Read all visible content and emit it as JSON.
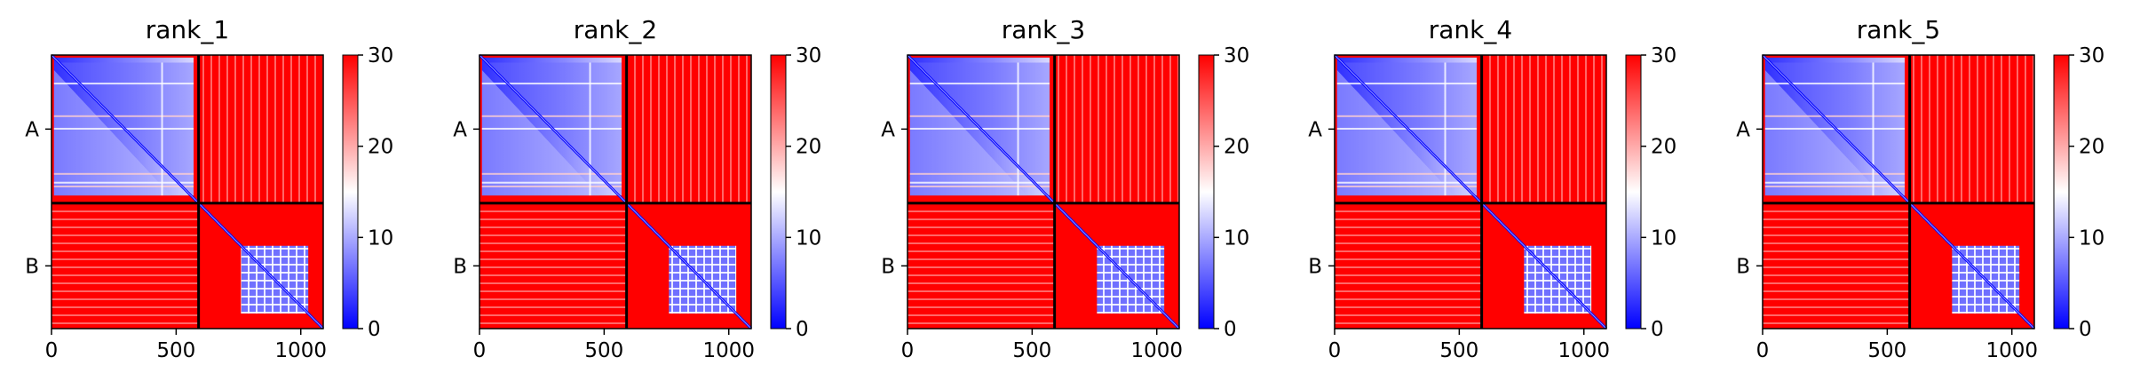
{
  "chart_data": [
    {
      "type": "heatmap",
      "title": "rank_1",
      "x_ticks": [
        "0",
        "500",
        "1000"
      ],
      "y_ticks": [
        "A",
        "B"
      ],
      "colorbar": {
        "ticks": [
          "0",
          "10",
          "20",
          "30"
        ],
        "range": [
          0,
          30
        ],
        "colormap": "bwr"
      },
      "x_range": [
        0,
        1090
      ],
      "chain_boundary": 590
    },
    {
      "type": "heatmap",
      "title": "rank_2",
      "x_ticks": [
        "0",
        "500",
        "1000"
      ],
      "y_ticks": [
        "A",
        "B"
      ],
      "colorbar": {
        "ticks": [
          "0",
          "10",
          "20",
          "30"
        ],
        "range": [
          0,
          30
        ],
        "colormap": "bwr"
      },
      "x_range": [
        0,
        1090
      ],
      "chain_boundary": 590
    },
    {
      "type": "heatmap",
      "title": "rank_3",
      "x_ticks": [
        "0",
        "500",
        "1000"
      ],
      "y_ticks": [
        "A",
        "B"
      ],
      "colorbar": {
        "ticks": [
          "0",
          "10",
          "20",
          "30"
        ],
        "range": [
          0,
          30
        ],
        "colormap": "bwr"
      },
      "x_range": [
        0,
        1090
      ],
      "chain_boundary": 590
    },
    {
      "type": "heatmap",
      "title": "rank_4",
      "x_ticks": [
        "0",
        "500",
        "1000"
      ],
      "y_ticks": [
        "A",
        "B"
      ],
      "colorbar": {
        "ticks": [
          "0",
          "10",
          "20",
          "30"
        ],
        "range": [
          0,
          30
        ],
        "colormap": "bwr"
      },
      "x_range": [
        0,
        1090
      ],
      "chain_boundary": 590
    },
    {
      "type": "heatmap",
      "title": "rank_5",
      "x_ticks": [
        "0",
        "500",
        "1000"
      ],
      "y_ticks": [
        "A",
        "B"
      ],
      "colorbar": {
        "ticks": [
          "0",
          "10",
          "20",
          "30"
        ],
        "range": [
          0,
          30
        ],
        "colormap": "bwr"
      },
      "x_range": [
        0,
        1090
      ],
      "chain_boundary": 590
    }
  ],
  "colors": {
    "low": "#0000ff",
    "mid": "#ffffff",
    "high": "#ff0000",
    "axis": "#000000"
  }
}
